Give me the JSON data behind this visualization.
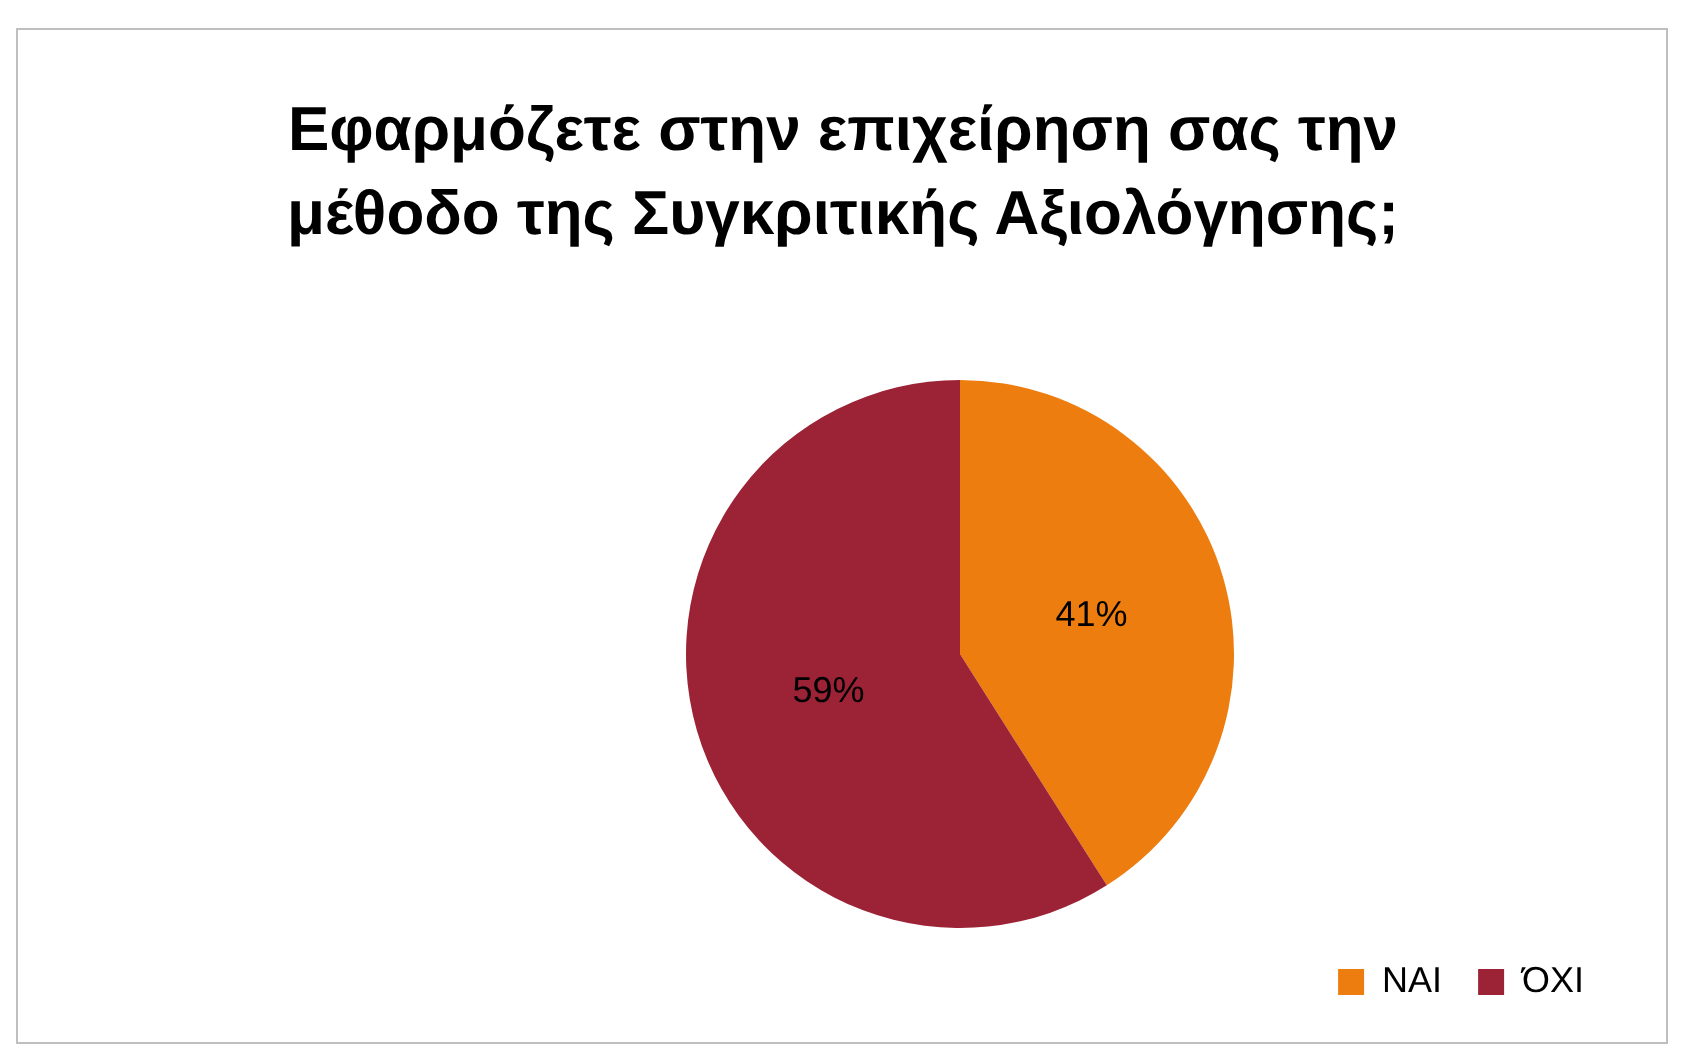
{
  "chart_data": {
    "type": "pie",
    "title": "Εφαρμόζετε στην επιχείρηση σας την μέθοδο της Συγκριτικής Αξιολόγησης;",
    "categories": [
      "ΝΑΙ",
      "ΌΧΙ"
    ],
    "values": [
      41,
      59
    ],
    "colors": [
      "#ed7d0e",
      "#9b2335"
    ],
    "value_labels": [
      "41%",
      "59%"
    ],
    "legend": "bottom right"
  }
}
